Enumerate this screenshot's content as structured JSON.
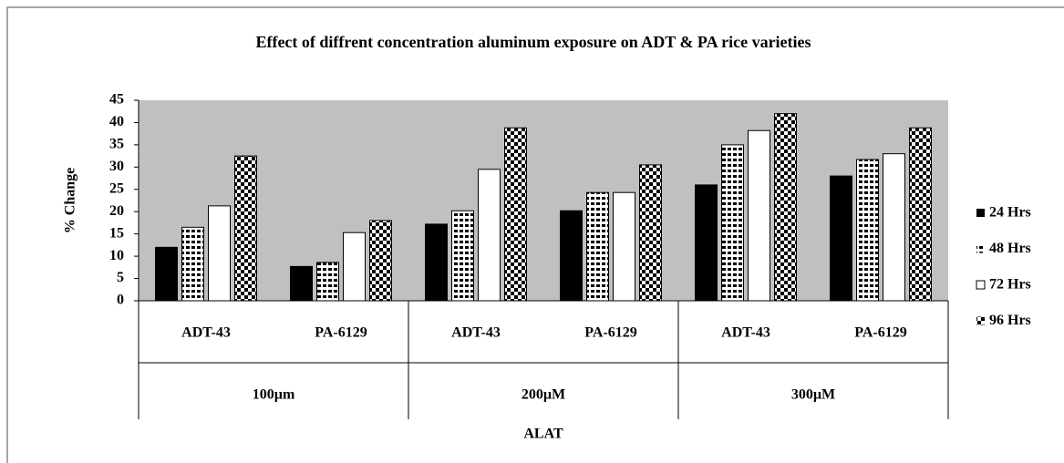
{
  "chart_data": {
    "type": "bar",
    "title": "Effect of diffrent concentration aluminum exposure on ADT & PA rice varieties",
    "y_label": "% Change",
    "x_label": "ALAT",
    "categories": [
      "ADT-43",
      "PA-6129",
      "ADT-43",
      "PA-6129",
      "ADT-43",
      "PA-6129"
    ],
    "category_groups": [
      "100µm",
      "200µM",
      "300µM"
    ],
    "series": [
      {
        "name": "24 Hrs",
        "color": "#000000",
        "pattern": "solid",
        "values": [
          12,
          7.7,
          17.2,
          20.2,
          26,
          28
        ]
      },
      {
        "name": "48 Hrs",
        "color": "#000000",
        "pattern": "stripes",
        "values": [
          16.5,
          8.6,
          20.2,
          24.3,
          35,
          31.7
        ]
      },
      {
        "name": "72 Hrs",
        "color": "#000000",
        "pattern": "empty",
        "values": [
          21.3,
          15.3,
          29.5,
          24.3,
          38.2,
          33
        ]
      },
      {
        "name": "96 Hrs",
        "color": "#000000",
        "pattern": "checker",
        "values": [
          32.5,
          18,
          38.8,
          30.5,
          42,
          38.8
        ]
      }
    ],
    "ylim": [
      0,
      45
    ],
    "yticks": [
      0,
      5,
      10,
      15,
      20,
      25,
      30,
      35,
      40,
      45
    ],
    "plot_background": "#c0c0c0",
    "legend": "right"
  }
}
